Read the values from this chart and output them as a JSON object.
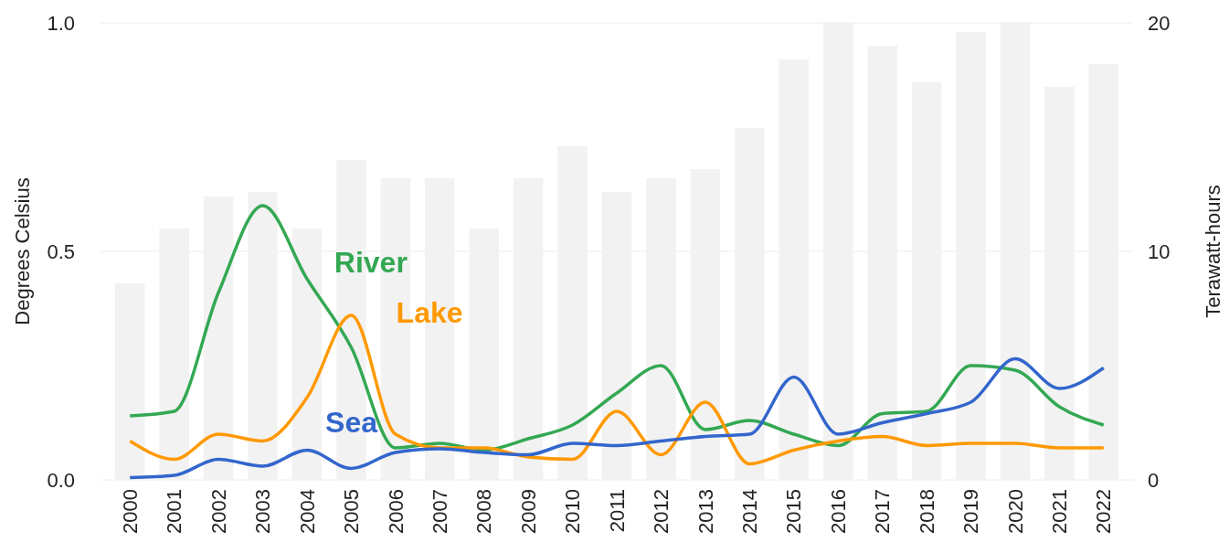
{
  "chart_data": {
    "type": "line",
    "ylabel": "Degrees Celsius",
    "y2label": "Terawatt-hours",
    "categories": [
      "2000",
      "2001",
      "2002",
      "2003",
      "2004",
      "2005",
      "2006",
      "2007",
      "2008",
      "2009",
      "2010",
      "2011",
      "2012",
      "2013",
      "2014",
      "2015",
      "2016",
      "2017",
      "2018",
      "2019",
      "2020",
      "2021",
      "2022"
    ],
    "series": [
      {
        "type": "bar",
        "axis": "y2",
        "color": "#f2f2f2",
        "values": [
          8.6,
          11,
          12.4,
          12.6,
          11,
          14,
          13.2,
          13.2,
          11,
          13.2,
          14.6,
          12.6,
          13.2,
          13.6,
          15.4,
          18.4,
          20,
          19,
          17.4,
          19.6,
          20,
          17.2,
          18.2
        ]
      },
      {
        "name": "River",
        "color": "#34a853",
        "values": [
          0.14,
          0.15,
          0.41,
          0.6,
          0.44,
          0.29,
          0.07,
          0.08,
          0.065,
          0.09,
          0.12,
          0.19,
          0.25,
          0.11,
          0.13,
          0.1,
          0.075,
          0.145,
          0.15,
          0.25,
          0.24,
          0.16,
          0.12
        ]
      },
      {
        "name": "Lake",
        "color": "#ff9900",
        "values": [
          0.085,
          0.045,
          0.1,
          0.085,
          0.18,
          0.36,
          0.1,
          0.07,
          0.07,
          0.05,
          0.045,
          0.15,
          0.055,
          0.17,
          0.035,
          0.065,
          0.085,
          0.095,
          0.075,
          0.08,
          0.08,
          0.07,
          0.07
        ]
      },
      {
        "name": "Sea",
        "color": "#3366cc",
        "values": [
          0.005,
          0.01,
          0.045,
          0.03,
          0.065,
          0.025,
          0.06,
          0.068,
          0.06,
          0.055,
          0.08,
          0.075,
          0.085,
          0.095,
          0.1,
          0.225,
          0.1,
          0.125,
          0.145,
          0.17,
          0.265,
          0.2,
          0.245
        ]
      }
    ],
    "ylim": [
      0,
      1
    ],
    "yticks": [
      {
        "value": 0,
        "label": "0.0"
      },
      {
        "value": 0.5,
        "label": "0.5"
      },
      {
        "value": 1,
        "label": "1.0"
      }
    ],
    "y2lim": [
      0,
      20
    ],
    "y2ticks": [
      0,
      10,
      20
    ],
    "grid": "y",
    "marker": "none",
    "line_style": "solid"
  }
}
